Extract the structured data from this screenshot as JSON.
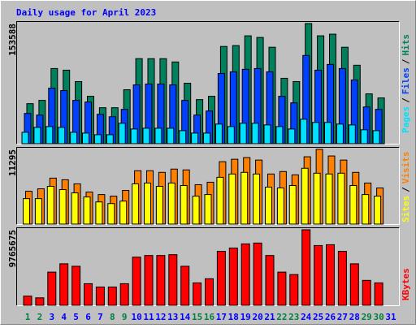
{
  "chart_data": {
    "type": "bar",
    "title": "Daily usage for April 2023",
    "legend_separator": "/",
    "categories": [
      "1",
      "2",
      "3",
      "4",
      "5",
      "6",
      "7",
      "8",
      "9",
      "10",
      "11",
      "12",
      "13",
      "14",
      "15",
      "16",
      "17",
      "18",
      "19",
      "20",
      "21",
      "22",
      "23",
      "24",
      "25",
      "26",
      "27",
      "28",
      "29",
      "30",
      "31"
    ],
    "category_colors": [
      "#008040",
      "#008040",
      "#0000ff",
      "#0000ff",
      "#0000ff",
      "#0000ff",
      "#0000ff",
      "#008040",
      "#008040",
      "#0000ff",
      "#0000ff",
      "#0000ff",
      "#0000ff",
      "#0000ff",
      "#008040",
      "#008040",
      "#0000ff",
      "#0000ff",
      "#0000ff",
      "#0000ff",
      "#0000ff",
      "#008040",
      "#008040",
      "#0000ff",
      "#0000ff",
      "#0000ff",
      "#0000ff",
      "#0000ff",
      "#008040",
      "#008040",
      "#0000ff"
    ],
    "panels": [
      {
        "ylim": [
          0,
          153588
        ],
        "yticks": [
          153588
        ],
        "series": [
          {
            "name": "Hits",
            "color": "#00805c",
            "values": [
              51200,
              55400,
              96100,
              94000,
              79400,
              60600,
              46000,
              46000,
              69000,
              108700,
              108700,
              108700,
              104500,
              77300,
              56400,
              60600,
              124300,
              125400,
              137900,
              135800,
              123300,
              83600,
              79400,
              153588,
              137900,
              140000,
              123300,
              100300,
              63700,
              58500,
              null
            ]
          },
          {
            "name": "Files",
            "color": "#0040ff",
            "values": [
              38700,
              36600,
              71000,
              67900,
              55400,
              53300,
              37600,
              34500,
              43900,
              75200,
              76300,
              76300,
              75200,
              55400,
              36600,
              41800,
              89800,
              91900,
              95100,
              96100,
              91900,
              60600,
              52200,
              112800,
              94000,
              101300,
              96100,
              81500,
              47000,
              43900,
              null
            ]
          },
          {
            "name": "Pages",
            "color": "#00e0ff",
            "values": [
              14600,
              20900,
              21900,
              20900,
              14600,
              13600,
              11500,
              11500,
              26100,
              18800,
              19800,
              19800,
              19800,
              16700,
              13600,
              13600,
              25100,
              21900,
              26100,
              26100,
              24000,
              21900,
              18800,
              31300,
              27200,
              27200,
              25100,
              24000,
              17800,
              16700,
              null
            ]
          }
        ]
      },
      {
        "ylim": [
          0,
          11295
        ],
        "yticks": [
          11295
        ],
        "series": [
          {
            "name": "Visits",
            "color": "#ff8000",
            "values": [
              4965,
              5337,
              6951,
              6703,
              6082,
              4841,
              4468,
              4220,
              5089,
              8068,
              8068,
              7820,
              8316,
              8192,
              5958,
              6330,
              9433,
              9805,
              10053,
              9681,
              7572,
              7944,
              7447,
              10178,
              11295,
              10302,
              9681,
              7820,
              6206,
              5461,
              null
            ]
          },
          {
            "name": "Sites",
            "color": "#ffff00",
            "values": [
              3848,
              3848,
              5710,
              5213,
              4717,
              4096,
              3351,
              3103,
              3475,
              6082,
              6206,
              5710,
              6206,
              5834,
              4220,
              4468,
              7075,
              7572,
              7820,
              7572,
              5586,
              5461,
              5834,
              8440,
              7696,
              7572,
              7696,
              5834,
              4468,
              4220,
              null
            ]
          }
        ]
      },
      {
        "ylim": [
          0,
          9765675
        ],
        "yticks": [
          9765675
        ],
        "series": [
          {
            "name": "KBytes",
            "color": "#ff0000",
            "values": [
              1180000,
              966000,
              4293000,
              5366000,
              5044000,
              2790000,
              2361000,
              2361000,
              2790000,
              6224000,
              6439000,
              6439000,
              6546000,
              5044000,
              2898000,
              3434000,
              6976000,
              7405000,
              7941000,
              8049000,
              6439000,
              4293000,
              3971000,
              9765675,
              7727000,
              7834000,
              6976000,
              5366000,
              3220000,
              2898000,
              null
            ]
          }
        ]
      }
    ]
  }
}
